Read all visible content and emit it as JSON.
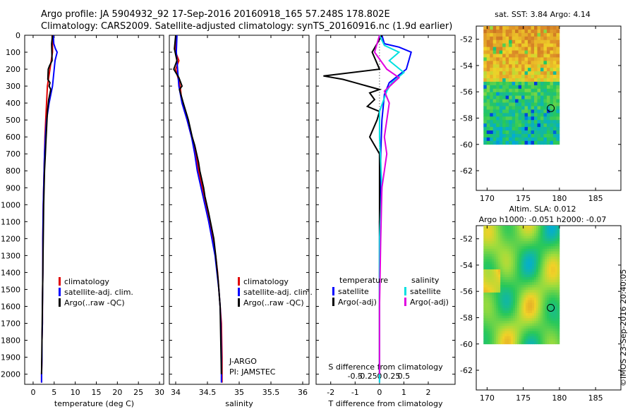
{
  "header": {
    "title_line1": "Argo profile: JA 5904932_92 17-Sep-2016 20160918_165 57.248S 178.802E",
    "title_line2": "Climatology: CARS2009. Satellite-adjusted climatology: synTS_20160916.nc (1.9d earlier)"
  },
  "colors": {
    "climatology": "#e00000",
    "satellite": "#0000ff",
    "argo": "#000000",
    "satellite_salinity": "#00e0e0",
    "argo_adj_salinity": "#e000e0"
  },
  "chart_data": [
    {
      "type": "line",
      "id": "temperature",
      "xlabel": "temperature (deg C)",
      "xlim": [
        -2,
        31
      ],
      "ylim": [
        2060,
        0
      ],
      "xticks": [
        0,
        5,
        10,
        15,
        20,
        25,
        30
      ],
      "yticks": [
        0,
        100,
        200,
        300,
        400,
        500,
        600,
        700,
        800,
        900,
        1000,
        1100,
        1200,
        1300,
        1400,
        1500,
        1600,
        1700,
        1800,
        1900,
        2000
      ],
      "legend": [
        "climatology",
        "satellite-adj. clim.",
        "Argo(..raw -QC)"
      ],
      "legend_position": "lower-center",
      "series": [
        {
          "name": "climatology",
          "color_key": "climatology",
          "x": [
            4.5,
            4.6,
            4.6,
            4.3,
            4.0,
            3.4,
            3.2,
            3.0,
            2.8,
            2.7,
            2.6,
            2.5,
            2.4,
            2.3,
            2.3,
            2.2,
            2.2,
            2.1,
            2.1,
            2.0,
            2.0
          ],
          "depth": [
            0,
            50,
            100,
            150,
            200,
            300,
            400,
            500,
            600,
            700,
            800,
            900,
            1000,
            1200,
            1400,
            1600,
            1700,
            1800,
            1900,
            2000,
            2050
          ]
        },
        {
          "name": "satellite-adj. clim.",
          "color_key": "satellite",
          "x": [
            4.8,
            4.9,
            5.3,
            5.7,
            5.2,
            4.6,
            3.8,
            3.2,
            2.9,
            2.7,
            2.6,
            2.5,
            2.4,
            2.3,
            2.3,
            2.2,
            2.2,
            2.1,
            2.1,
            2.0,
            2.0
          ],
          "depth": [
            0,
            50,
            80,
            100,
            150,
            300,
            400,
            500,
            600,
            700,
            800,
            900,
            1000,
            1200,
            1400,
            1600,
            1700,
            1800,
            1900,
            2000,
            2050
          ]
        },
        {
          "name": "Argo(..raw -QC)",
          "color_key": "argo",
          "x": [
            4.6,
            4.4,
            4.5,
            3.9,
            3.6,
            3.5,
            4.0,
            3.8,
            4.2,
            3.7,
            3.4,
            3.2,
            3.0,
            2.9,
            2.7,
            2.6,
            2.5,
            2.4,
            2.3,
            2.2,
            2.1,
            2.0
          ],
          "depth": [
            0,
            50,
            150,
            180,
            200,
            260,
            280,
            300,
            320,
            380,
            450,
            550,
            650,
            700,
            800,
            900,
            1000,
            1200,
            1400,
            1600,
            1800,
            2000
          ]
        }
      ]
    },
    {
      "type": "line",
      "id": "salinity",
      "xlabel": "salinity",
      "xlim": [
        33.9,
        36.1
      ],
      "ylim": [
        2060,
        0
      ],
      "xticks": [
        34,
        34.5,
        35,
        35.5,
        36
      ],
      "legend": [
        "climatology",
        "satellite-adj. clim.",
        "Argo(..raw -QC)"
      ],
      "legend_position": "lower-right",
      "annotations": [
        "J-ARGO",
        "PI: JAMSTEC"
      ],
      "series": [
        {
          "name": "climatology",
          "color_key": "climatology",
          "x": [
            34.0,
            34.0,
            34.05,
            34.0,
            34.07,
            34.1,
            34.18,
            34.25,
            34.32,
            34.36,
            34.42,
            34.48,
            34.53,
            34.58,
            34.63,
            34.66,
            34.68,
            34.7,
            34.72,
            34.73,
            34.73
          ],
          "depth": [
            0,
            100,
            150,
            200,
            300,
            400,
            500,
            600,
            700,
            800,
            900,
            1000,
            1100,
            1200,
            1300,
            1400,
            1500,
            1600,
            1700,
            1900,
            2050
          ]
        },
        {
          "name": "satellite-adj. clim.",
          "color_key": "satellite",
          "x": [
            34.02,
            34.01,
            34.03,
            34.05,
            34.1,
            34.18,
            34.25,
            34.3,
            34.34,
            34.4,
            34.46,
            34.52,
            34.57,
            34.62,
            34.65,
            34.68,
            34.7,
            34.71,
            34.72,
            34.72
          ],
          "depth": [
            0,
            100,
            200,
            300,
            400,
            500,
            600,
            700,
            800,
            900,
            1000,
            1100,
            1200,
            1300,
            1400,
            1500,
            1600,
            1700,
            1900,
            2050
          ]
        },
        {
          "name": "Argo(..raw -QC)",
          "color_key": "argo",
          "x": [
            34.0,
            33.98,
            34.02,
            33.97,
            34.05,
            34.1,
            34.06,
            34.12,
            34.2,
            34.26,
            34.3,
            34.36,
            34.38,
            34.44,
            34.46,
            34.52,
            34.6,
            34.63,
            34.67,
            34.7,
            34.71,
            34.72
          ],
          "depth": [
            0,
            80,
            150,
            200,
            250,
            300,
            320,
            400,
            500,
            600,
            650,
            750,
            800,
            900,
            950,
            1050,
            1200,
            1300,
            1450,
            1600,
            1800,
            2000
          ]
        }
      ]
    },
    {
      "type": "line",
      "id": "difference",
      "xlabel": "T difference from climatology",
      "xlabel_top": "S difference from climatology",
      "xlim": [
        -2.6,
        3.1
      ],
      "ylim": [
        2060,
        0
      ],
      "xticks_T": [
        -2,
        -1,
        0,
        1,
        2
      ],
      "xticks_S": [
        "-0.5",
        "-0.25",
        "0",
        "0.25",
        "0.5"
      ],
      "legend_headers": [
        "temperature",
        "salinity"
      ],
      "legend": [
        "satellite",
        "Argo(-adj)",
        "satellite",
        "Argo(-adj)"
      ],
      "legend_position": "lower-center",
      "series": [
        {
          "name": "satellite",
          "group": "temperature",
          "color_key": "satellite",
          "x": [
            0.1,
            0.2,
            0.8,
            1.3,
            1.1,
            0.4,
            0.2,
            0.1,
            0.05,
            0.05,
            0.0,
            0.0,
            0.0,
            0.0,
            0.0
          ],
          "depth": [
            0,
            50,
            70,
            100,
            200,
            280,
            350,
            500,
            700,
            900,
            1100,
            1400,
            1700,
            2000,
            2050
          ]
        },
        {
          "name": "Argo(-adj)",
          "group": "temperature",
          "color_key": "argo",
          "x": [
            0.1,
            -0.3,
            0.0,
            -2.3,
            -1.5,
            -0.5,
            0.0,
            -0.4,
            -0.2,
            -0.5,
            0.0,
            -0.1,
            -0.4,
            0.0,
            0.0,
            0.0,
            0.0
          ],
          "depth": [
            0,
            100,
            200,
            240,
            260,
            300,
            320,
            340,
            380,
            420,
            450,
            500,
            600,
            700,
            900,
            1400,
            2000
          ]
        },
        {
          "name": "satellite",
          "group": "salinity",
          "color_key": "satellite_salinity",
          "x": [
            0.0,
            0.2,
            0.8,
            0.4,
            1.0,
            0.5,
            0.3,
            0.0,
            0.0,
            0.1,
            0.0,
            0.0,
            0.0
          ],
          "depth": [
            0,
            60,
            100,
            150,
            220,
            280,
            330,
            450,
            600,
            900,
            1200,
            1600,
            2050
          ]
        },
        {
          "name": "Argo(-adj)",
          "group": "salinity",
          "color_key": "argo_adj_salinity",
          "x": [
            0.0,
            -0.2,
            0.3,
            0.8,
            0.2,
            0.4,
            0.2,
            0.3,
            0.1,
            0.05,
            0.0,
            0.0
          ],
          "depth": [
            0,
            100,
            200,
            250,
            330,
            400,
            600,
            700,
            900,
            1200,
            1600,
            2000
          ]
        }
      ]
    },
    {
      "type": "heatmap",
      "id": "sst_map",
      "title": "sat. SST: 3.84 Argo: 4.14",
      "xlim": [
        168.5,
        188.5
      ],
      "ylim": [
        -63.5,
        -51
      ],
      "xticks": [
        170,
        175,
        180,
        185
      ],
      "yticks": [
        -52,
        -54,
        -56,
        -58,
        -60,
        -62
      ],
      "data_extent": {
        "lon": [
          169.5,
          180
        ],
        "lat": [
          -60,
          -51
        ]
      },
      "argo_position": {
        "lon": 178.802,
        "lat": -57.248
      }
    },
    {
      "type": "heatmap",
      "id": "sla_map",
      "title": "Altim. SLA: 0.012",
      "subtitle": "Argo h1000: -0.051 h2000: -0.07",
      "xlim": [
        168.5,
        188.5
      ],
      "ylim": [
        -63.5,
        -51
      ],
      "xticks": [
        170,
        175,
        180,
        185
      ],
      "yticks": [
        -52,
        -54,
        -56,
        -58,
        -60,
        -62
      ],
      "data_extent": {
        "lon": [
          169.5,
          180
        ],
        "lat": [
          -60,
          -51
        ]
      },
      "argo_position": {
        "lon": 178.802,
        "lat": -57.248
      }
    }
  ],
  "footer": {
    "timestamp": "©IMOS 23-Sep-2016 20:40:05"
  }
}
